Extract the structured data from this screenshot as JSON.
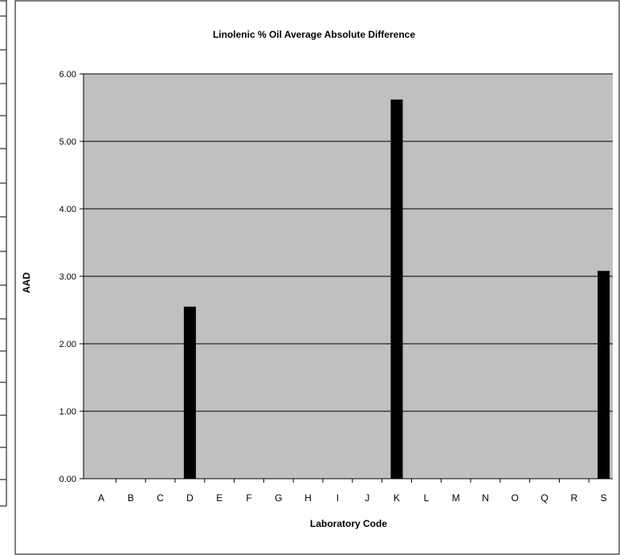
{
  "chart_data": {
    "type": "bar",
    "title": "Linolenic % Oil Average Absolute Difference",
    "xlabel": "Laboratory Code",
    "ylabel": "AAD",
    "categories": [
      "A",
      "B",
      "C",
      "D",
      "E",
      "F",
      "G",
      "H",
      "I",
      "J",
      "K",
      "L",
      "M",
      "N",
      "O",
      "Q",
      "R",
      "S"
    ],
    "values": [
      0,
      0,
      0,
      2.55,
      0,
      0,
      0,
      0,
      0,
      0,
      5.62,
      0,
      0,
      0,
      0,
      0,
      0,
      3.08
    ],
    "ylim": [
      0,
      6
    ],
    "yticks": [
      "0.00",
      "1.00",
      "2.00",
      "3.00",
      "4.00",
      "5.00",
      "6.00"
    ],
    "grid": true,
    "legend": "none",
    "colors": {
      "plot_bg": "#c0c0c0",
      "bar": "#000000",
      "grid": "#000000"
    }
  }
}
